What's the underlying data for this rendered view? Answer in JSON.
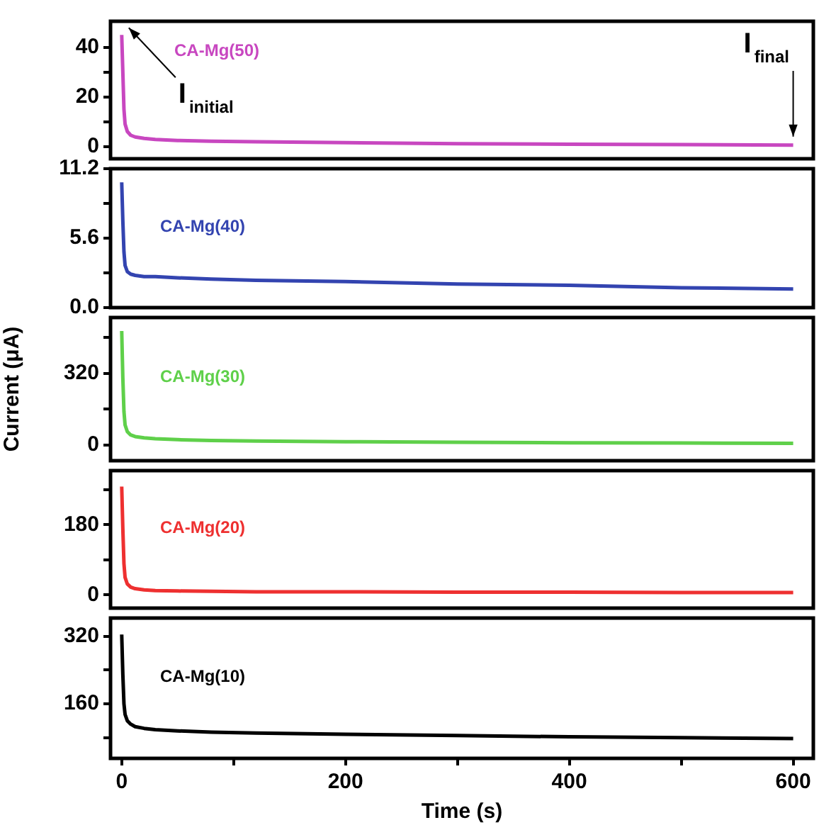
{
  "chart_data": [
    {
      "type": "line",
      "xlim": [
        -10,
        618
      ],
      "ylim": [
        -5,
        50.5
      ],
      "yticks": [
        0,
        {
          "value": 10,
          "label": null
        },
        20,
        {
          "value": 30,
          "label": null
        },
        40
      ],
      "tick_labels": "y",
      "grid": false,
      "legend": false,
      "marker": "none",
      "line_style": "solid",
      "x": [
        0,
        1,
        2,
        3,
        5,
        8,
        12,
        20,
        30,
        50,
        80,
        120,
        200,
        300,
        400,
        500,
        600
      ],
      "series": [
        {
          "name": "CA-Mg(50)",
          "color": "#c847c0",
          "values": [
            45,
            30,
            15,
            9,
            6,
            4.5,
            3.8,
            3.2,
            2.8,
            2.4,
            2.1,
            1.9,
            1.5,
            1.1,
            0.9,
            0.7,
            0.5
          ]
        }
      ],
      "annotations": [
        {
          "text": "I$_{initial}$",
          "x": 0,
          "y": 45
        },
        {
          "text": "I$_{final}$",
          "x": 600,
          "y": 0.5
        }
      ]
    },
    {
      "type": "line",
      "xlim": [
        -10,
        618
      ],
      "ylim": [
        0,
        11.2
      ],
      "yticks": [
        {
          "value": 0,
          "label": "0.0"
        },
        {
          "value": 2.8,
          "label": null
        },
        5.6,
        {
          "value": 8.4,
          "label": null
        },
        11.2
      ],
      "tick_labels": "y",
      "grid": false,
      "legend": false,
      "marker": "none",
      "line_style": "solid",
      "x": [
        0,
        1,
        2,
        3,
        5,
        8,
        12,
        20,
        30,
        50,
        80,
        120,
        200,
        300,
        400,
        500,
        600
      ],
      "series": [
        {
          "name": "CA-Mg(40)",
          "color": "#3344b0",
          "values": [
            10.1,
            7,
            4.5,
            3.4,
            2.9,
            2.7,
            2.6,
            2.5,
            2.5,
            2.4,
            2.3,
            2.2,
            2.1,
            1.9,
            1.8,
            1.6,
            1.5
          ]
        }
      ]
    },
    {
      "type": "line",
      "xlim": [
        -10,
        618
      ],
      "ylim": [
        -70,
        570
      ],
      "yticks": [
        0,
        {
          "value": 160,
          "label": null
        },
        320,
        {
          "value": 480,
          "label": null
        }
      ],
      "tick_labels": "y",
      "grid": false,
      "legend": false,
      "marker": "none",
      "line_style": "solid",
      "ylabel": "Current (μA)",
      "x": [
        0,
        1,
        2,
        3,
        5,
        8,
        12,
        20,
        30,
        50,
        80,
        120,
        200,
        300,
        400,
        500,
        600
      ],
      "series": [
        {
          "name": "CA-Mg(30)",
          "color": "#5fd04a",
          "values": [
            510,
            300,
            150,
            90,
            60,
            45,
            38,
            32,
            28,
            24,
            20,
            18,
            15,
            12,
            10,
            9,
            8
          ]
        }
      ]
    },
    {
      "type": "line",
      "xlim": [
        -10,
        618
      ],
      "ylim": [
        -34,
        319
      ],
      "yticks": [
        0,
        {
          "value": 90,
          "label": null
        },
        180,
        {
          "value": 270,
          "label": null
        }
      ],
      "tick_labels": "y",
      "grid": false,
      "legend": false,
      "marker": "none",
      "line_style": "solid",
      "x": [
        0,
        1,
        2,
        3,
        5,
        8,
        12,
        20,
        30,
        50,
        80,
        120,
        200,
        300,
        400,
        500,
        600
      ],
      "series": [
        {
          "name": "CA-Mg(20)",
          "color": "#ee3030",
          "values": [
            278,
            170,
            80,
            45,
            28,
            20,
            16,
            13,
            11,
            10,
            9,
            8,
            8,
            7,
            7,
            6,
            6
          ]
        }
      ]
    },
    {
      "type": "line",
      "xlim": [
        -10,
        618
      ],
      "xticks": [
        0,
        {
          "value": 100,
          "label": null
        },
        200,
        {
          "value": 300,
          "label": null
        },
        400,
        {
          "value": 500,
          "label": null
        },
        600
      ],
      "ylim": [
        31,
        363
      ],
      "yticks": [
        {
          "value": 80,
          "label": null
        },
        160,
        {
          "value": 240,
          "label": null
        },
        320
      ],
      "grid": false,
      "legend": false,
      "marker": "none",
      "line_style": "solid",
      "xlabel": "Time (s)",
      "x": [
        0,
        1,
        2,
        3,
        5,
        8,
        12,
        20,
        30,
        50,
        80,
        120,
        200,
        300,
        400,
        500,
        600
      ],
      "series": [
        {
          "name": "CA-Mg(10)",
          "color": "#000000",
          "values": [
            324,
            230,
            160,
            135,
            120,
            112,
            106,
            102,
            99,
            96,
            93,
            91,
            88,
            85,
            82,
            80,
            78
          ]
        }
      ]
    }
  ]
}
